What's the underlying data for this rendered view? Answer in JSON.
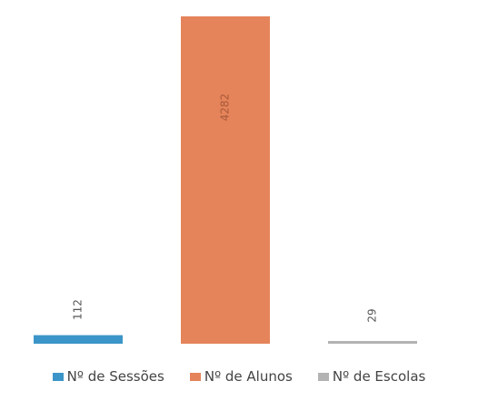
{
  "chart_data": {
    "type": "bar",
    "categories": [
      "Nº de Sessões",
      "Nº de Alunos",
      "Nº de Escolas"
    ],
    "values": [
      112,
      4282,
      29
    ],
    "data_labels": [
      "112",
      "4282",
      "29"
    ],
    "series": [
      {
        "name": "Nº de Sessões",
        "value": 112,
        "color": "#3c95c8"
      },
      {
        "name": "Nº de Alunos",
        "value": 4282,
        "color": "#e5845a"
      },
      {
        "name": "Nº de Escolas",
        "value": 29,
        "color": "#b3b3b3"
      }
    ],
    "title": "",
    "xlabel": "",
    "ylabel": "",
    "ylim": [
      0,
      4282
    ],
    "grid": false,
    "legend_position": "bottom",
    "data_label_rotation": "vertical"
  }
}
